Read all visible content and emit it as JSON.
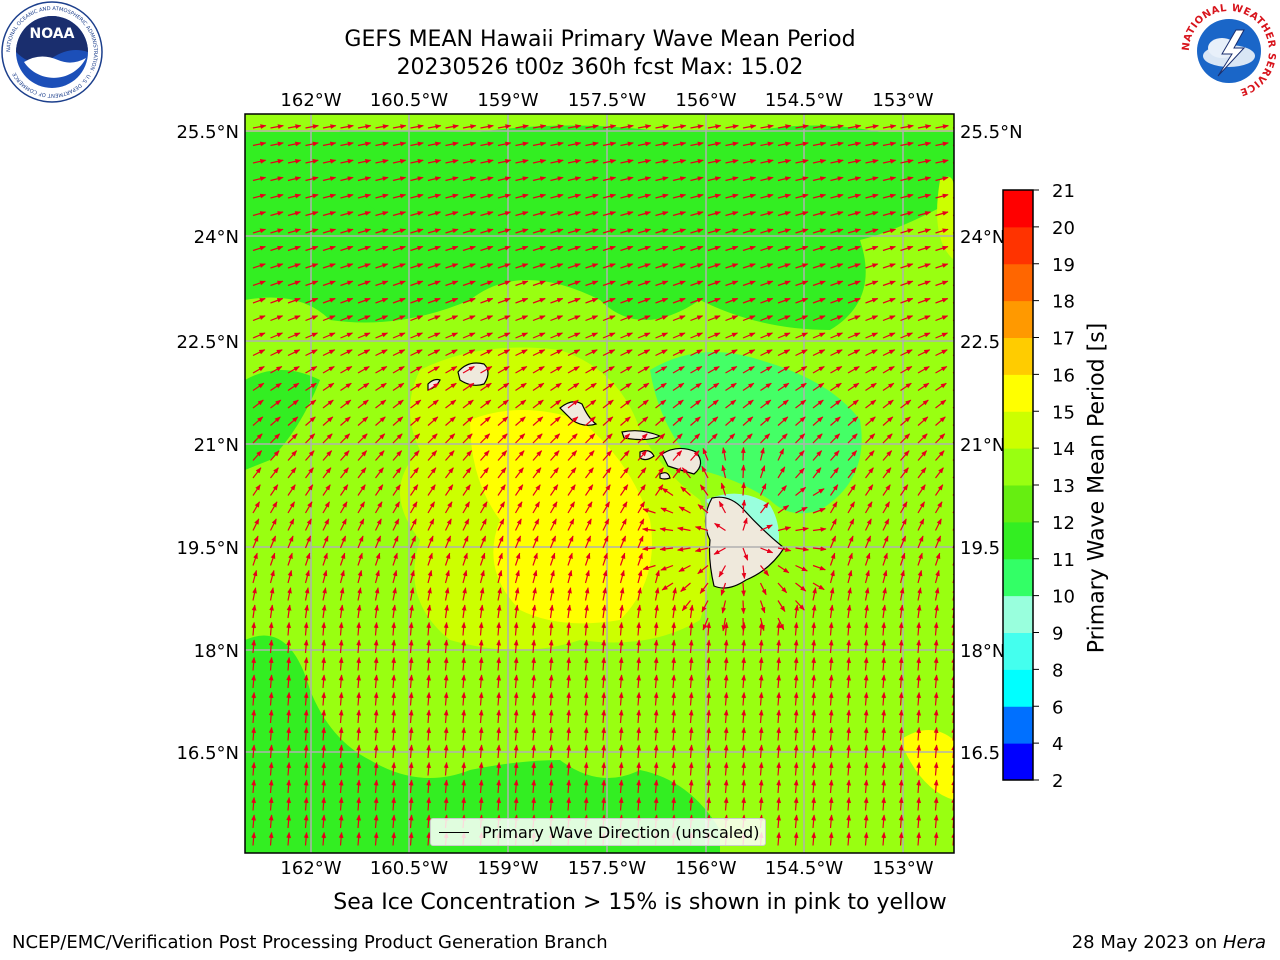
{
  "header": {
    "title_line1": "GEFS MEAN Hawaii Primary Wave Mean Period",
    "title_line2": "20230526 t00z 360h fcst   Max: 15.02"
  },
  "map": {
    "lon_labels": [
      "162°W",
      "160.5°W",
      "159°W",
      "157.5°W",
      "156°W",
      "154.5°W",
      "153°W"
    ],
    "lat_labels_left": [
      "25.5°N",
      "24°N",
      "22.5°N",
      "21°N",
      "19.5°N",
      "18°N",
      "16.5°N"
    ],
    "lat_labels_right": [
      "25.5°N",
      "24°N",
      "22.5",
      "21°N",
      "19.5",
      "18°N",
      "16.5"
    ],
    "legend_label": "Primary Wave Direction (unscaled)",
    "arrow_color": "#e6001a",
    "grid_color": "#b0b0b0",
    "land_color": "#efe9dc"
  },
  "colorbar": {
    "title": "Primary Wave Mean Period [s]",
    "tick_labels": [
      "2",
      "4",
      "6",
      "8",
      "9",
      "10",
      "11",
      "12",
      "13",
      "14",
      "15",
      "16",
      "17",
      "18",
      "19",
      "20",
      "21"
    ],
    "colors": [
      "#0000ff",
      "#0070ff",
      "#00ffff",
      "#44ffee",
      "#99ffdd",
      "#33ff66",
      "#33ee22",
      "#66ee11",
      "#99ff11",
      "#ccff00",
      "#ffff00",
      "#ffcc00",
      "#ff9900",
      "#ff6600",
      "#ff3300",
      "#ff0000"
    ]
  },
  "footnote": "Sea Ice Concentration > 15% is shown in pink to yellow",
  "footer": {
    "left": "NCEP/EMC/Verification Post Processing Product Generation Branch",
    "right_prefix": "28 May 2023 on ",
    "right_host": "Hera"
  },
  "logos": {
    "noaa_text": "NOAA",
    "noaa_ring": "NATIONAL OCEANIC AND ATMOSPHERIC ADMINISTRATION · U.S. DEPARTMENT OF COMMERCE",
    "nws_ring": "NATIONAL WEATHER SERVICE"
  }
}
